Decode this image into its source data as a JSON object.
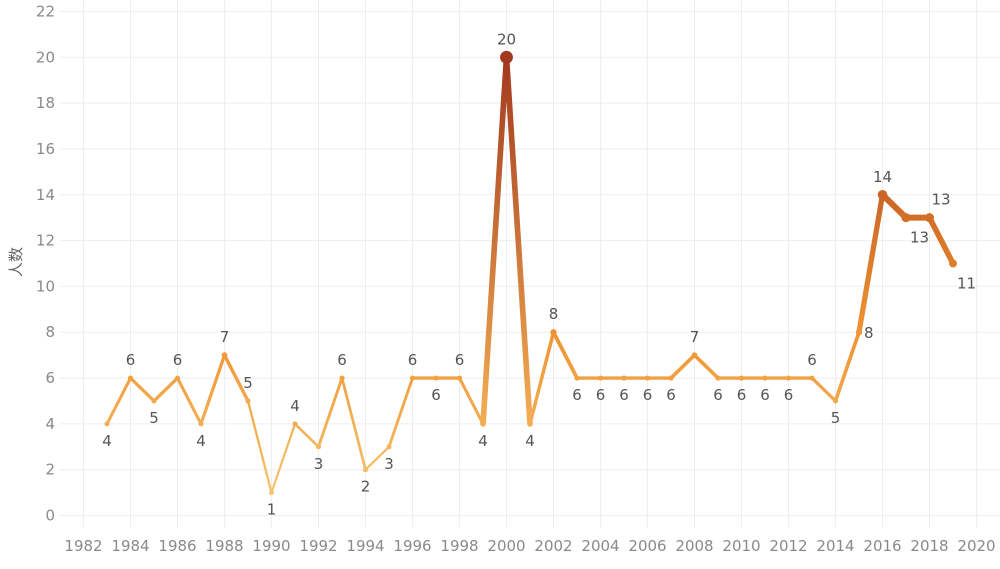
{
  "chart_data": {
    "type": "line",
    "title": "",
    "xlabel": "",
    "ylabel": "人数",
    "xlim": [
      1981,
      2021
    ],
    "ylim": [
      -0.5,
      22.5
    ],
    "x_ticks": [
      1982,
      1984,
      1986,
      1988,
      1990,
      1992,
      1994,
      1996,
      1998,
      2000,
      2002,
      2004,
      2006,
      2008,
      2010,
      2012,
      2014,
      2016,
      2018,
      2020
    ],
    "y_ticks": [
      0,
      2,
      4,
      6,
      8,
      10,
      12,
      14,
      16,
      18,
      20,
      22
    ],
    "grid": true,
    "legend": "none",
    "color_scale": {
      "low": "#f5c36b",
      "mid": "#ef8f2e",
      "high": "#a3391e"
    },
    "series": [
      {
        "x": [
          1983,
          1984,
          1985,
          1986,
          1987,
          1988,
          1989,
          1990,
          1991,
          1992,
          1993,
          1994,
          1995,
          1996,
          1997,
          1998,
          1999,
          2000,
          2001,
          2002,
          2003,
          2004,
          2005,
          2006,
          2007,
          2008,
          2009,
          2010,
          2011,
          2012,
          2013,
          2014,
          2015,
          2016,
          2017,
          2018,
          2019
        ],
        "values": [
          4,
          6,
          5,
          6,
          4,
          7,
          5,
          1,
          4,
          3,
          6,
          2,
          3,
          6,
          6,
          6,
          4,
          20,
          4,
          8,
          6,
          6,
          6,
          6,
          6,
          7,
          6,
          6,
          6,
          6,
          6,
          5,
          8,
          14,
          13,
          13,
          11
        ],
        "labels": [
          "4",
          "6",
          "5",
          "6",
          "4",
          "7",
          "5",
          "1",
          "4",
          "3",
          "6",
          "2",
          "3",
          "6",
          "6",
          "6",
          "4",
          "20",
          "4",
          "8",
          "6",
          "6",
          "6",
          "6",
          "6",
          "7",
          "6",
          "6",
          "6",
          "6",
          "6",
          "5",
          "8",
          "14",
          "13",
          "13",
          "11"
        ],
        "label_pos": [
          "below",
          "above",
          "below",
          "above",
          "below",
          "above",
          "above",
          "below",
          "above",
          "below",
          "above",
          "below",
          "below",
          "above",
          "below",
          "above",
          "below",
          "above",
          "below",
          "above",
          "below",
          "below",
          "below",
          "below",
          "below",
          "above",
          "below",
          "below",
          "below",
          "below",
          "above",
          "below",
          "right",
          "above",
          "below-right",
          "above-right",
          "below-right"
        ]
      }
    ]
  }
}
